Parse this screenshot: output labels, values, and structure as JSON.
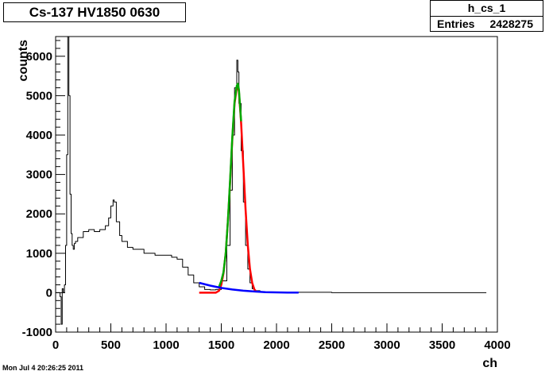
{
  "chart_data": {
    "type": "line",
    "title": "Cs-137 HV1850 0630",
    "xlabel": "ch",
    "ylabel": "counts",
    "xlim": [
      0,
      4000
    ],
    "ylim": [
      -1000,
      6500
    ],
    "xticks": [
      "0",
      "500",
      "1000",
      "1500",
      "2000",
      "2500",
      "3000",
      "3500",
      "4000"
    ],
    "yticks": [
      "-1000",
      "0",
      "1000",
      "2000",
      "3000",
      "4000",
      "5000",
      "6000"
    ],
    "grid": false,
    "stats": {
      "name": "h_cs_1",
      "entries_label": "Entries",
      "entries_value": "2428275"
    },
    "series": [
      {
        "style": "histogram",
        "color": "#000000",
        "x": [
          0,
          20,
          40,
          50,
          60,
          70,
          80,
          90,
          100,
          110,
          120,
          130,
          140,
          150,
          160,
          170,
          180,
          200,
          250,
          300,
          350,
          400,
          450,
          480,
          500,
          520,
          530,
          550,
          580,
          600,
          650,
          700,
          800,
          900,
          1000,
          1050,
          1100,
          1150,
          1200,
          1250,
          1300,
          1350,
          1400,
          1450,
          1500,
          1550,
          1580,
          1600,
          1620,
          1640,
          1650,
          1660,
          1680,
          1700,
          1720,
          1740,
          1760,
          1780,
          1800,
          1850,
          1900,
          2000,
          2500,
          3000,
          3500,
          3900
        ],
        "y": [
          0,
          0,
          -100,
          -800,
          100,
          0,
          200,
          1200,
          3500,
          6500,
          5000,
          2500,
          1500,
          1200,
          1100,
          1250,
          1300,
          1400,
          1550,
          1600,
          1550,
          1600,
          1700,
          1900,
          2200,
          2350,
          2300,
          1800,
          1450,
          1300,
          1150,
          1100,
          1000,
          950,
          950,
          900,
          850,
          650,
          450,
          250,
          150,
          80,
          70,
          80,
          300,
          1200,
          2600,
          4000,
          5200,
          5900,
          5600,
          4800,
          3600,
          2300,
          1200,
          600,
          250,
          100,
          50,
          20,
          10,
          10,
          0,
          0,
          0,
          0
        ]
      },
      {
        "style": "fit",
        "color": "#ff0000",
        "x": [
          1300,
          1400,
          1450,
          1480,
          1500,
          1520,
          1540,
          1560,
          1580,
          1600,
          1620,
          1640,
          1650,
          1660,
          1680,
          1700,
          1720,
          1740,
          1760,
          1780,
          1800,
          1820
        ],
        "y": [
          0,
          0,
          0,
          50,
          200,
          500,
          1000,
          1800,
          2800,
          3900,
          4800,
          5200,
          5250,
          5100,
          4300,
          3200,
          2100,
          1200,
          600,
          250,
          80,
          20
        ]
      },
      {
        "style": "fit",
        "color": "#00aa00",
        "x": [
          1480,
          1500,
          1520,
          1540,
          1560,
          1580,
          1600,
          1620,
          1640,
          1650,
          1660,
          1680
        ],
        "y": [
          150,
          300,
          520,
          1000,
          1800,
          2850,
          3950,
          4850,
          5250,
          5300,
          5150,
          4350
        ]
      },
      {
        "style": "fit",
        "color": "#0000ff",
        "x": [
          1300,
          1400,
          1500,
          1600,
          1700,
          1800,
          1900,
          2000,
          2100,
          2200
        ],
        "y": [
          250,
          180,
          120,
          80,
          50,
          30,
          15,
          8,
          4,
          2
        ]
      }
    ]
  },
  "timestamp": "Mon Jul  4 20:26:25 2011"
}
